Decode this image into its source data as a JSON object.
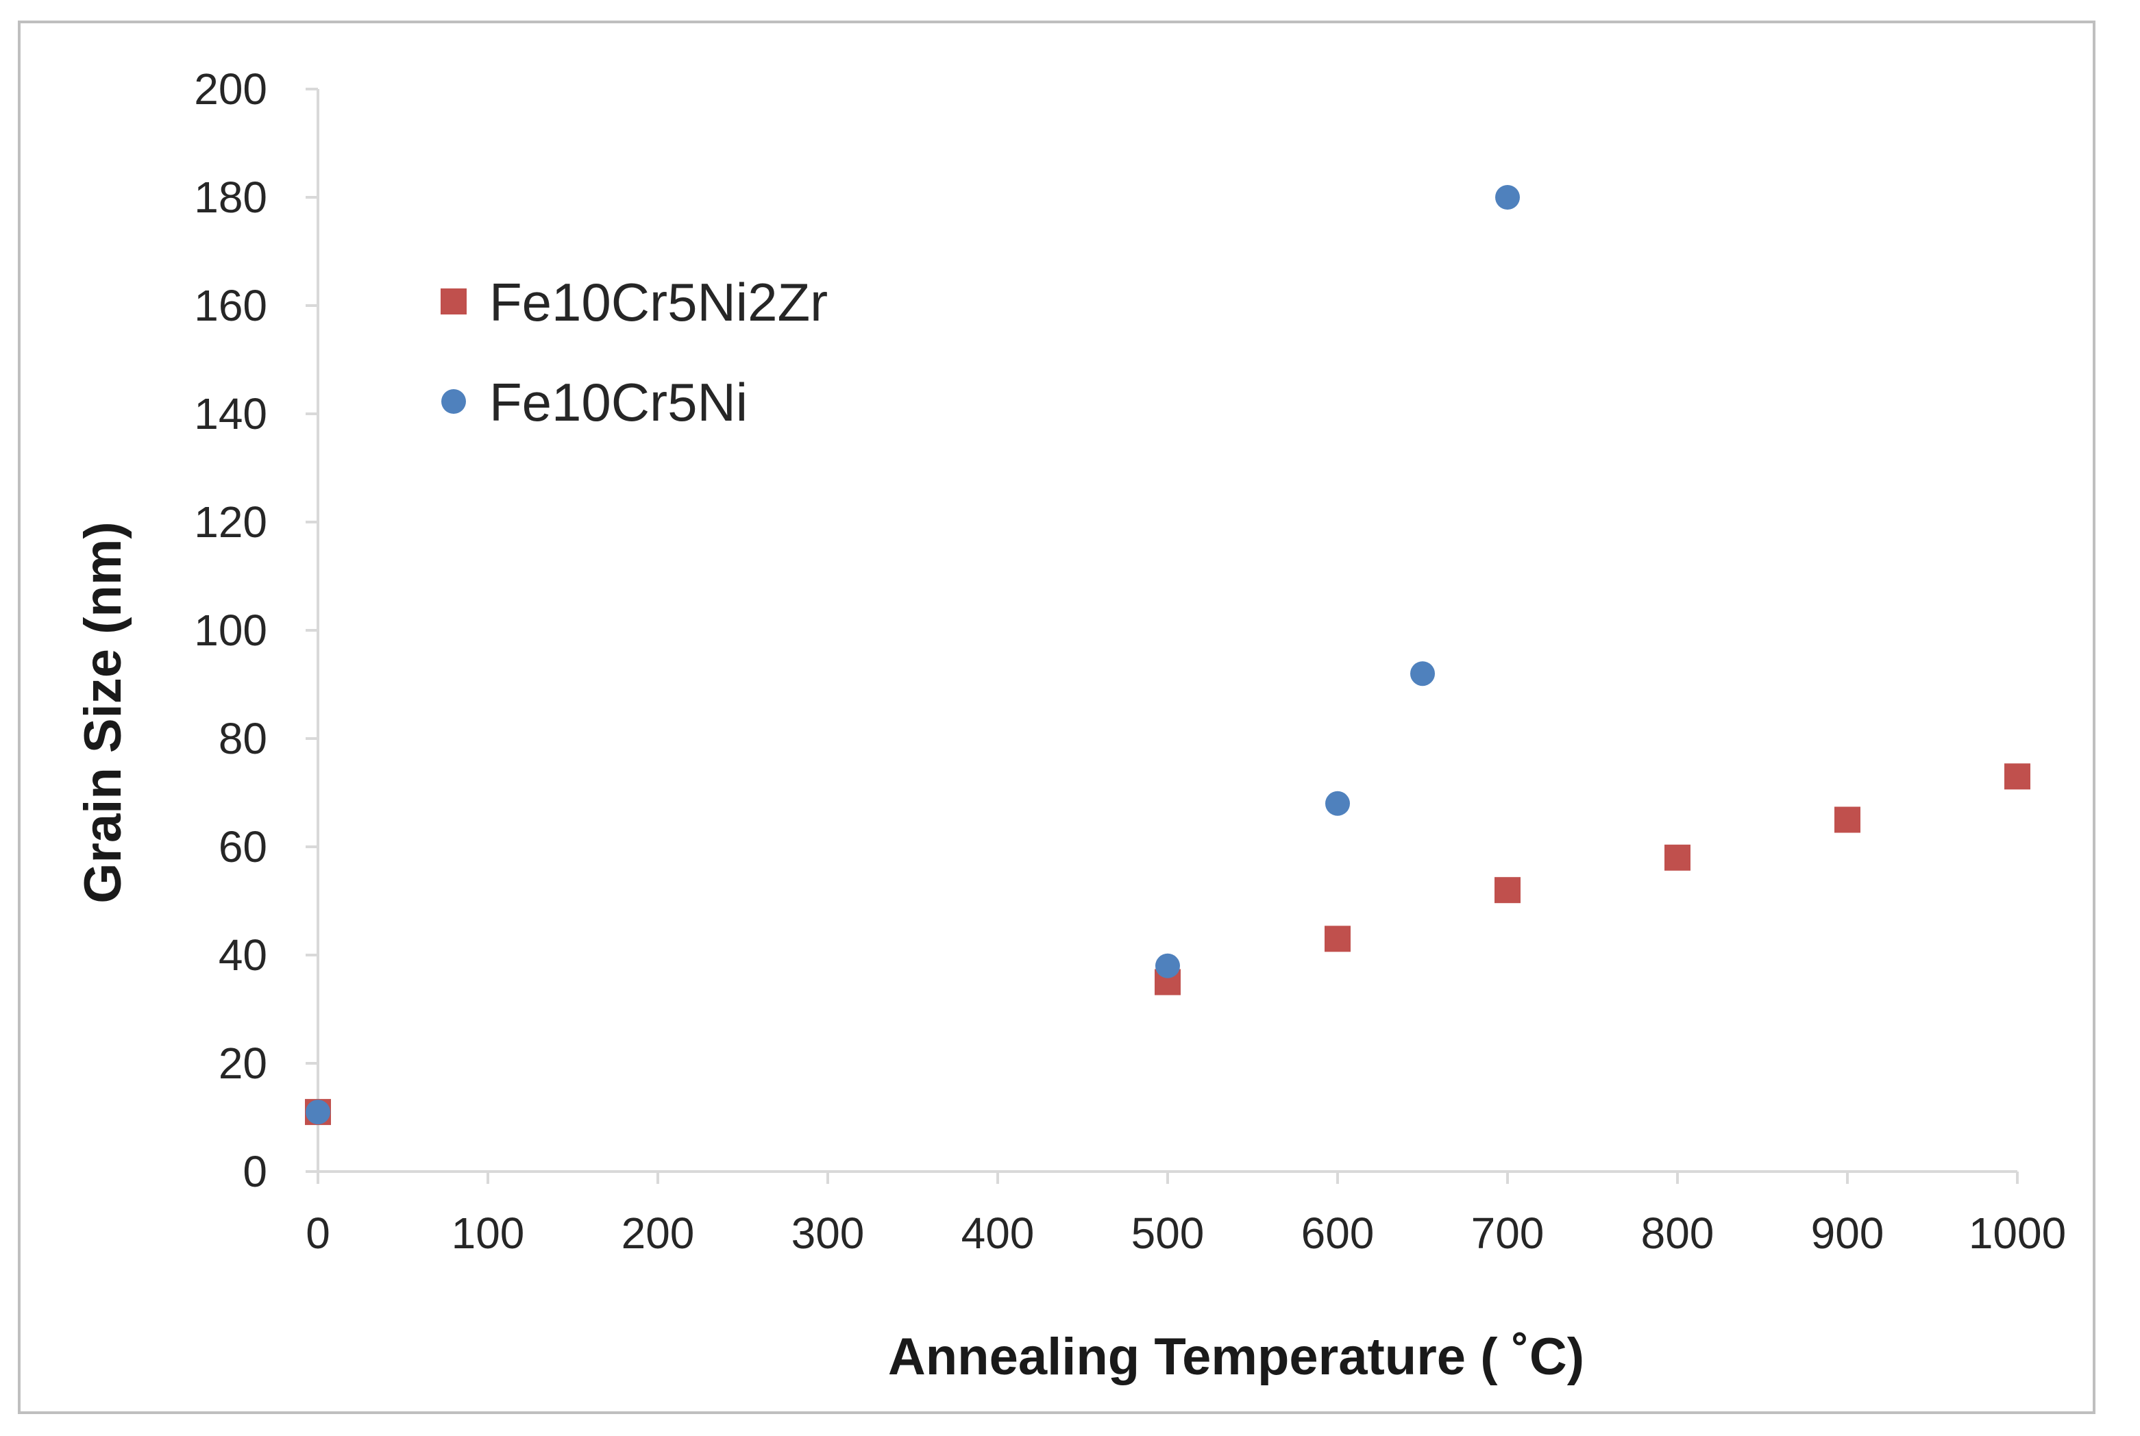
{
  "chart_data": {
    "type": "scatter",
    "title": "",
    "xlabel": "Annealing Temperature ( ˚C)",
    "ylabel": "Grain Size (nm)",
    "xlim": [
      0,
      1000
    ],
    "ylim": [
      0,
      200
    ],
    "xticks": [
      0,
      100,
      200,
      300,
      400,
      500,
      600,
      700,
      800,
      900,
      1000
    ],
    "yticks": [
      0,
      20,
      40,
      60,
      80,
      100,
      120,
      140,
      160,
      180,
      200
    ],
    "grid": false,
    "legend_position": "top-left",
    "series": [
      {
        "name": "Fe10Cr5Ni2Zr",
        "marker": "square",
        "color": "#c0504d",
        "x": [
          0,
          500,
          600,
          700,
          800,
          900,
          1000
        ],
        "y": [
          11,
          35,
          43,
          52,
          58,
          65,
          73
        ]
      },
      {
        "name": "Fe10Cr5Ni",
        "marker": "circle",
        "color": "#4f81bd",
        "x": [
          0,
          500,
          600,
          650,
          700
        ],
        "y": [
          11,
          38,
          68,
          92,
          180
        ]
      }
    ]
  }
}
